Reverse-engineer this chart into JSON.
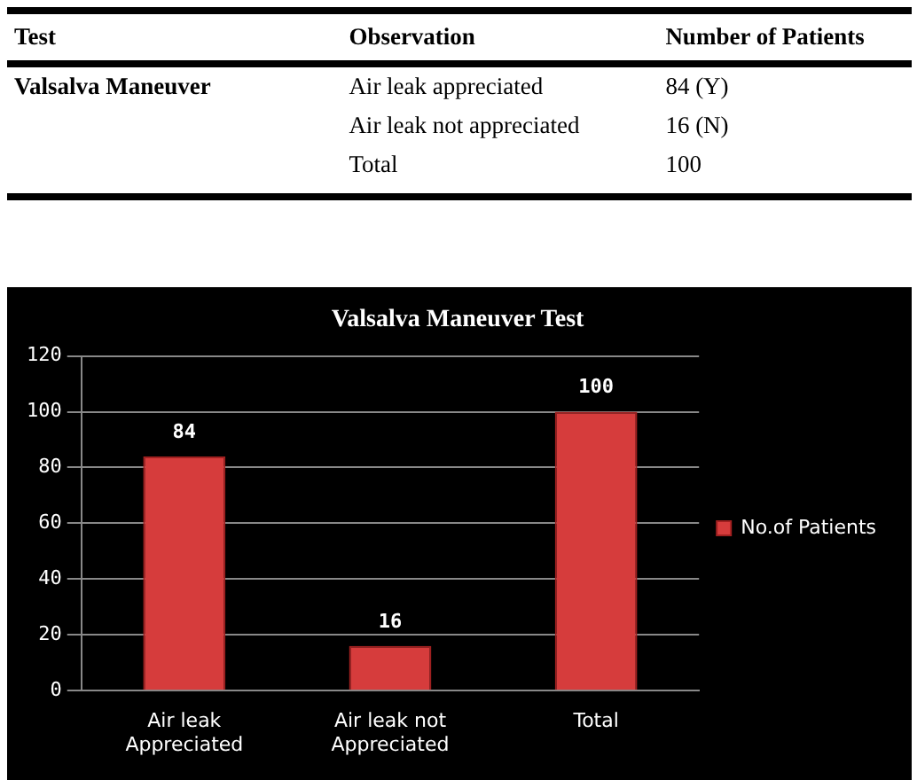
{
  "chart_data": {
    "type": "bar",
    "title": "Valsalva Maneuver Test",
    "categories": [
      "Air leak Appreciated",
      "Air leak not Appreciated",
      "Total"
    ],
    "series": [
      {
        "name": "No.of Patients",
        "color": "#d63c3c",
        "values": [
          84,
          16,
          100
        ]
      }
    ],
    "ylim": [
      0,
      120
    ],
    "yticks": [
      0,
      20,
      40,
      60,
      80,
      100,
      120
    ],
    "grid": "y",
    "legend": "right",
    "data_labels": true,
    "annotations": [
      "Test",
      "Observation",
      "Number of Patients",
      "Valsalva Maneuver",
      "Air leak appreciated",
      "84 (Y)",
      "Air leak not appreciated",
      "16 (N)",
      "Total",
      "100"
    ]
  }
}
